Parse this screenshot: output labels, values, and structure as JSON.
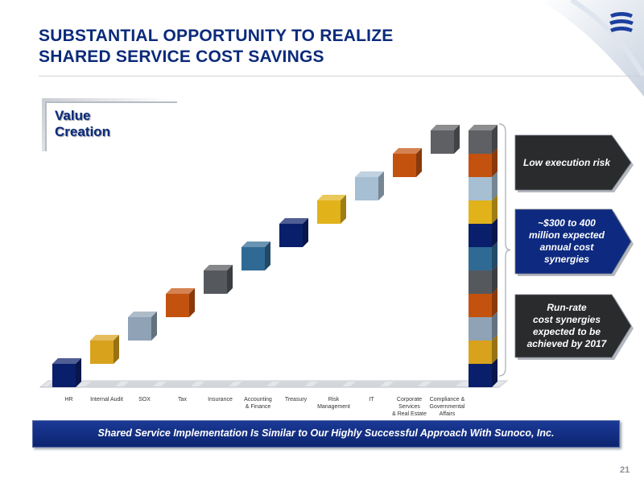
{
  "header": {
    "title_line1": "SUBSTANTIAL OPPORTUNITY TO REALIZE",
    "title_line2": "SHARED SERVICE COST SAVINGS"
  },
  "value_box": {
    "line1": "Value",
    "line2": "Creation"
  },
  "chart_data": {
    "type": "bar",
    "subtype": "waterfall-staircase",
    "title": "",
    "xlabel": "",
    "ylabel": "",
    "categories": [
      "HR",
      "Internal Audit",
      "SOX",
      "Tax",
      "Insurance",
      "Accounting & Finance",
      "Treasury",
      "Risk Management",
      "IT",
      "Corporate Services & Real Estate",
      "Compliance & Governmental Affairs"
    ],
    "category_lines": [
      [
        "HR"
      ],
      [
        "Internal Audit"
      ],
      [
        "SOX"
      ],
      [
        "Tax"
      ],
      [
        "Insurance"
      ],
      [
        "Accounting",
        "& Finance"
      ],
      [
        "Treasury"
      ],
      [
        "Risk",
        "Management"
      ],
      [
        "IT"
      ],
      [
        "Corporate",
        "Services",
        "& Real Estate"
      ],
      [
        "Compliance &",
        "Governmental",
        "Affairs"
      ]
    ],
    "values": [
      1,
      1,
      1,
      1,
      1,
      1,
      1,
      1,
      1,
      1,
      1
    ],
    "colors": [
      "#0a1f6b",
      "#d9a21c",
      "#8fa2b6",
      "#c4520f",
      "#55585d",
      "#2f6a94",
      "#0a1f6b",
      "#e2b21a",
      "#a7bfd3",
      "#c4520f",
      "#5e6064"
    ],
    "total_stack_order_bottom_to_top": [
      "#0a1f6b",
      "#d9a21c",
      "#8fa2b6",
      "#c4520f",
      "#55585d",
      "#2f6a94",
      "#0a1f6b",
      "#e2b21a",
      "#a7bfd3",
      "#c4520f",
      "#5e6064"
    ],
    "grid": false,
    "legend": "none"
  },
  "callouts": [
    {
      "lines": [
        "Low execution risk"
      ],
      "style": "dark"
    },
    {
      "lines": [
        "~$300 to 400",
        "million expected",
        "annual cost",
        "synergies"
      ],
      "style": "blue"
    },
    {
      "lines": [
        "Run-rate",
        "cost synergies",
        "expected to be",
        "achieved by 2017"
      ],
      "style": "dark"
    }
  ],
  "footer_banner": "Shared Service Implementation Is Similar to Our Highly Successful Approach With Sunoco, Inc.",
  "page_number": "21",
  "colors": {
    "title_blue": "#0b2a7a",
    "banner_blue": "#132f85",
    "callout_dark": "#2a2b2d"
  },
  "icons": {
    "logo": "company-logo-icon"
  }
}
